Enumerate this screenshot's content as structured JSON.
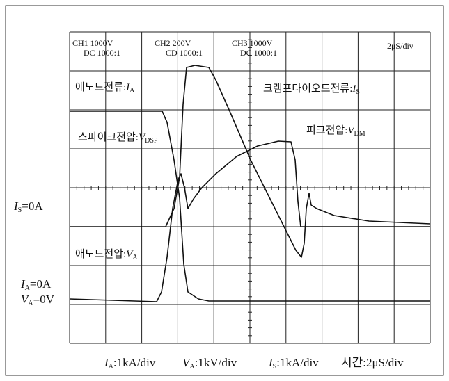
{
  "scope_settings": [
    {
      "line1": "CH1 1000V",
      "line2": "DC 1000:1"
    },
    {
      "line1": "CH2 200V",
      "line2": "CD 1000:1"
    },
    {
      "line1": "CH3 1000V",
      "line2": "DC 1000:1"
    }
  ],
  "timebase": "2μS/div",
  "trace_labels": [
    {
      "prefix": "애노드전류:",
      "symbol": "I",
      "subscript": "A"
    },
    {
      "prefix": "크램프다이오드전류:",
      "symbol": "I",
      "subscript": "S"
    },
    {
      "prefix": "스파이크전압:",
      "symbol": "V",
      "subscript": "DSP"
    },
    {
      "prefix": "피크전압:",
      "symbol": "V",
      "subscript": "DM"
    },
    {
      "prefix": "애노드전압:",
      "symbol": "V",
      "subscript": "A"
    }
  ],
  "zero_labels": [
    {
      "symbol": "I",
      "subscript": "S",
      "suffix": "=0A"
    },
    {
      "symbol": "I",
      "subscript": "A",
      "suffix": "=0A"
    },
    {
      "symbol": "V",
      "subscript": "A",
      "suffix": "=0V"
    }
  ],
  "scale_labels": [
    {
      "symbol": "I",
      "subscript": "A",
      "suffix": ":1kA/div"
    },
    {
      "symbol": "V",
      "subscript": "A",
      "suffix": ":1kV/div"
    },
    {
      "symbol": "I",
      "subscript": "S",
      "suffix": ":1kA/div"
    },
    {
      "prefix": "시간:",
      "suffix": "2μS/div"
    }
  ]
}
